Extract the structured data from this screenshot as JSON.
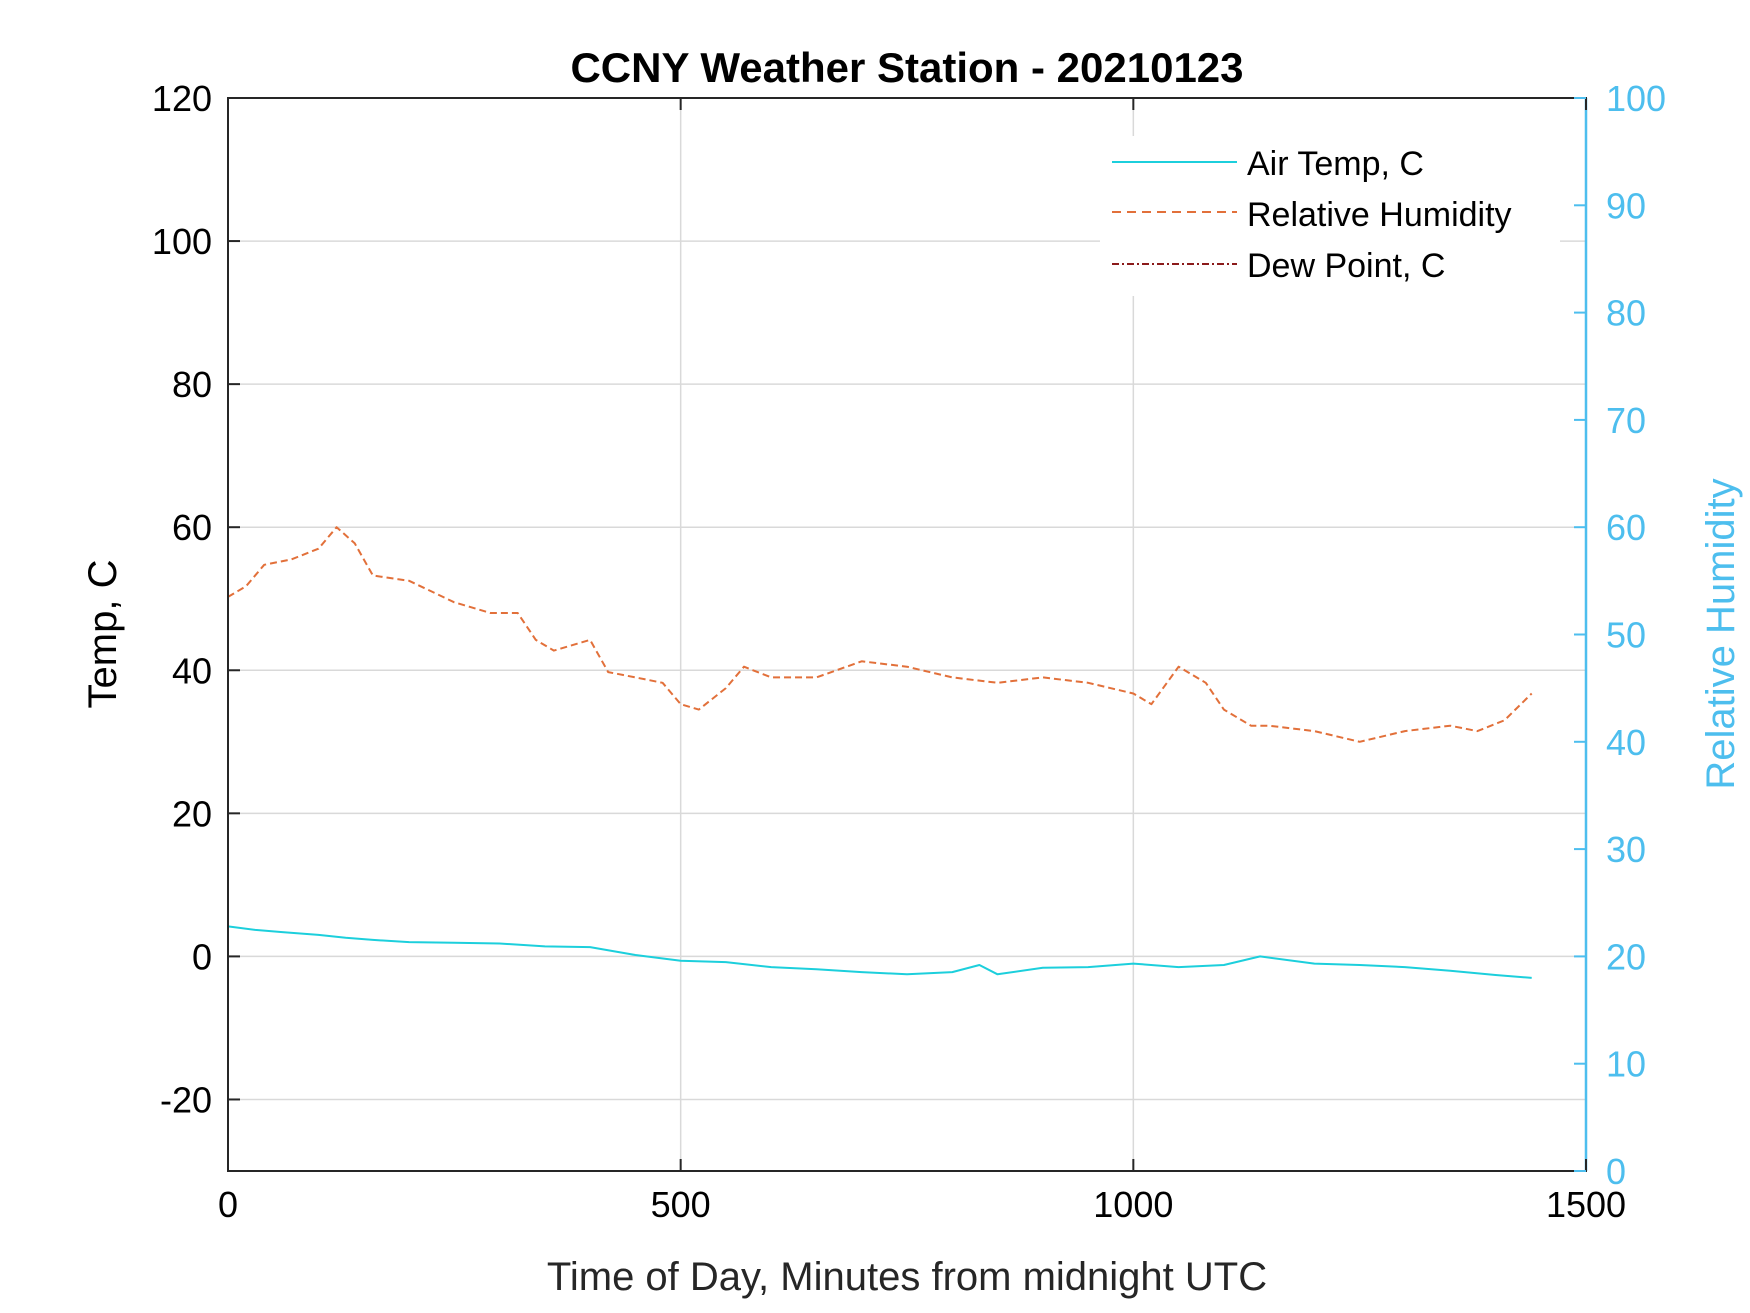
{
  "chart_data": {
    "type": "line",
    "title": "CCNY Weather Station - 20210123",
    "xlabel": "Time of Day, Minutes from midnight UTC",
    "ylabel_left": "Temp, C",
    "ylabel_right": "Relative Humidity",
    "xlim": [
      0,
      1500
    ],
    "ylim_left": [
      -30,
      120
    ],
    "ylim_right": [
      0,
      100
    ],
    "xticks": [
      "0",
      "500",
      "1000",
      "1500"
    ],
    "xtick_values": [
      0,
      500,
      1000,
      1500
    ],
    "yticks_left": [
      "-20",
      "0",
      "20",
      "40",
      "60",
      "80",
      "100",
      "120"
    ],
    "ytick_values_left": [
      -20,
      0,
      20,
      40,
      60,
      80,
      100,
      120
    ],
    "yticks_right": [
      "0",
      "10",
      "20",
      "30",
      "40",
      "50",
      "60",
      "70",
      "80",
      "90",
      "100"
    ],
    "ytick_values_right": [
      0,
      10,
      20,
      30,
      40,
      50,
      60,
      70,
      80,
      90,
      100
    ],
    "grid": true,
    "legend_position": "top-right",
    "colors": {
      "air_temp": "#1ccfdc",
      "relative_humidity": "#e2703a",
      "dew_point": "#8b1a1a",
      "right_axis": "#4dbeee",
      "grid": "#d9d9d9"
    },
    "series": [
      {
        "name": "Air Temp, C",
        "axis": "left",
        "style": "solid",
        "x": [
          0,
          30,
          60,
          100,
          130,
          160,
          200,
          250,
          300,
          350,
          400,
          450,
          500,
          550,
          600,
          650,
          700,
          750,
          800,
          830,
          850,
          900,
          950,
          1000,
          1050,
          1100,
          1140,
          1200,
          1250,
          1300,
          1350,
          1400,
          1440
        ],
        "values": [
          4.2,
          3.7,
          3.4,
          3.0,
          2.6,
          2.3,
          2.0,
          1.9,
          1.8,
          1.4,
          1.3,
          0.2,
          -0.6,
          -0.8,
          -1.5,
          -1.8,
          -2.2,
          -2.5,
          -2.2,
          -1.2,
          -2.5,
          -1.6,
          -1.5,
          -1.0,
          -1.5,
          -1.2,
          0.0,
          -1.0,
          -1.2,
          -1.5,
          -2.0,
          -2.6,
          -3.0
        ]
      },
      {
        "name": "Relative Humidity",
        "axis": "right",
        "style": "dashed",
        "x": [
          0,
          20,
          40,
          70,
          100,
          120,
          140,
          160,
          200,
          250,
          290,
          320,
          340,
          360,
          400,
          420,
          450,
          480,
          500,
          520,
          550,
          570,
          600,
          650,
          700,
          750,
          800,
          850,
          900,
          950,
          1000,
          1020,
          1050,
          1080,
          1100,
          1130,
          1150,
          1200,
          1250,
          1300,
          1350,
          1380,
          1410,
          1440
        ],
        "values": [
          53.5,
          54.5,
          56.5,
          57,
          58,
          60,
          58.5,
          55.5,
          55,
          53,
          52,
          52,
          49.5,
          48.5,
          49.5,
          46.5,
          46,
          45.5,
          43.5,
          43,
          45,
          47,
          46,
          46,
          47.5,
          47,
          46,
          45.5,
          46,
          45.5,
          44.5,
          43.5,
          47,
          45.5,
          43,
          41.5,
          41.5,
          41,
          40,
          41,
          41.5,
          41,
          42,
          44.5
        ]
      },
      {
        "name": "Dew Point, C",
        "axis": "left",
        "style": "dash-dot",
        "x": [],
        "values": []
      }
    ]
  }
}
